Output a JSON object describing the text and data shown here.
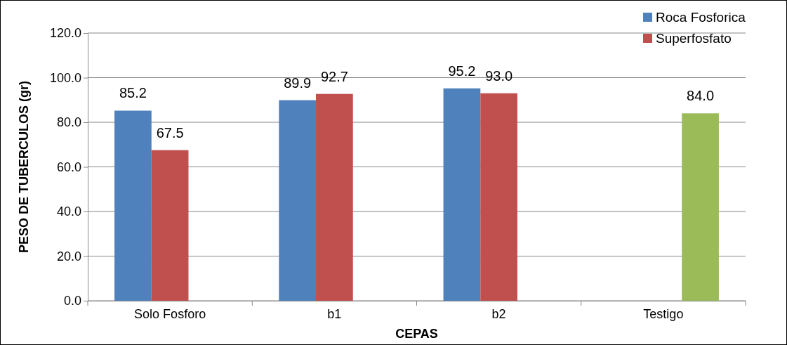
{
  "chart_data": {
    "type": "bar",
    "xlabel": "CEPAS",
    "ylabel": "PESO DE TUBERCULOS (gr)",
    "categories": [
      "Solo Fosforo",
      "b1",
      "b2",
      "Testigo"
    ],
    "series": [
      {
        "name": "Roca Fosforica",
        "color": "#4f81bd",
        "values": [
          85.2,
          89.9,
          95.2,
          null
        ],
        "value_labels": [
          "85.2",
          "89.9",
          "95.2",
          null
        ]
      },
      {
        "name": "Superfosfato",
        "color": "#c0504d",
        "values": [
          67.5,
          92.7,
          93.0,
          null
        ],
        "value_labels": [
          "67.5",
          "92.7",
          "93.0",
          null
        ]
      },
      {
        "color": "#9bbb59",
        "values": [
          null,
          null,
          null,
          84.0
        ],
        "value_labels": [
          null,
          null,
          null,
          "84.0"
        ]
      }
    ],
    "ylim": [
      0,
      120
    ],
    "yticks": [
      {
        "value": 0,
        "label": "0.0"
      },
      {
        "value": 20,
        "label": "20.0"
      },
      {
        "value": 40,
        "label": "40.0"
      },
      {
        "value": 60,
        "label": "60.0"
      },
      {
        "value": 80,
        "label": "80.0"
      },
      {
        "value": 100,
        "label": "100.0"
      },
      {
        "value": 120,
        "label": "120.0"
      }
    ],
    "grid": "y",
    "legend": "top right"
  }
}
